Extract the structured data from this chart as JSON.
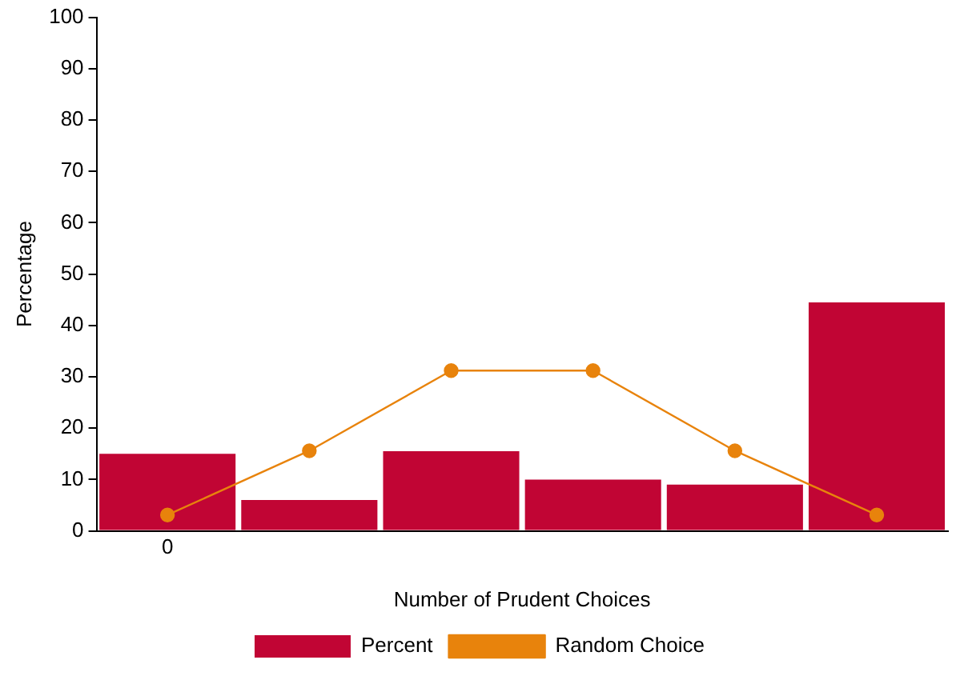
{
  "chart_data": {
    "type": "bar",
    "xlabel": "Number of Prudent Choices",
    "ylabel": "Percentage",
    "categories": [
      "0",
      null,
      null,
      null,
      null,
      null
    ],
    "ylim": [
      0,
      100
    ],
    "yticks": [
      0,
      10,
      20,
      30,
      40,
      50,
      60,
      70,
      80,
      90,
      100
    ],
    "series": [
      {
        "name": "Percent",
        "color": "#c10534",
        "values": [
          15,
          6,
          15.5,
          10,
          9,
          44.5
        ]
      },
      {
        "name": "Random Choice",
        "type": "line",
        "color": "#e8830c",
        "values": [
          3.1,
          15.6,
          31.2,
          31.2,
          15.6,
          3.1
        ]
      }
    ],
    "grid": false,
    "legend": "bottom",
    "marker": "circle",
    "line_style": "solid"
  }
}
